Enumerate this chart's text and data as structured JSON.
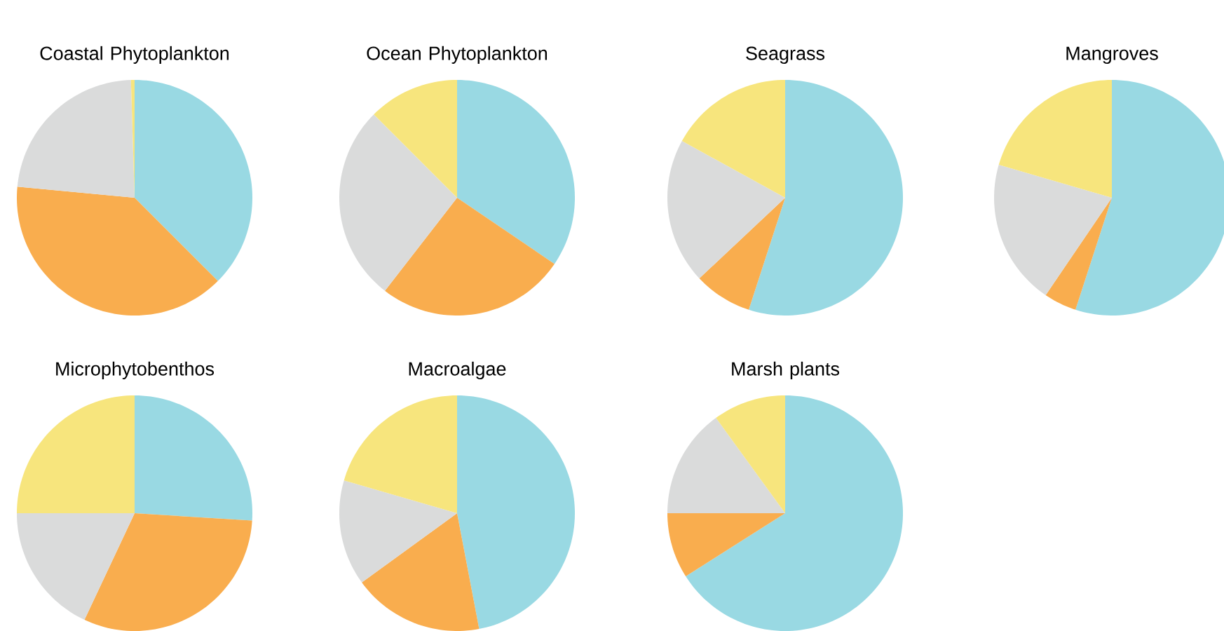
{
  "chart_data": [
    {
      "type": "pie",
      "title": "Coastal Phytoplankton",
      "categories": [
        null,
        null,
        null,
        null
      ],
      "values": [
        37.5,
        39,
        23,
        0.5
      ],
      "colors": [
        "#99d9e3",
        "#f9ad4e",
        "#dadbdb",
        "#f7e57d"
      ]
    },
    {
      "type": "pie",
      "title": "Ocean Phytoplankton",
      "categories": [
        null,
        null,
        null,
        null
      ],
      "values": [
        34.5,
        26,
        27,
        12.5
      ],
      "colors": [
        "#99d9e3",
        "#f9ad4e",
        "#dadbdb",
        "#f7e57d"
      ]
    },
    {
      "type": "pie",
      "title": "Seagrass",
      "categories": [
        null,
        null,
        null,
        null
      ],
      "values": [
        55,
        8,
        20,
        17
      ],
      "colors": [
        "#99d9e3",
        "#f9ad4e",
        "#dadbdb",
        "#f7e57d"
      ]
    },
    {
      "type": "pie",
      "title": "Mangroves",
      "categories": [
        null,
        null,
        null,
        null
      ],
      "values": [
        55,
        4.5,
        20,
        20.5
      ],
      "colors": [
        "#99d9e3",
        "#f9ad4e",
        "#dadbdb",
        "#f7e57d"
      ]
    },
    {
      "type": "pie",
      "title": "Microphytobenthos",
      "categories": [
        null,
        null,
        null,
        null
      ],
      "values": [
        26,
        31,
        18,
        25
      ],
      "colors": [
        "#99d9e3",
        "#f9ad4e",
        "#dadbdb",
        "#f7e57d"
      ]
    },
    {
      "type": "pie",
      "title": "Macroalgae",
      "categories": [
        null,
        null,
        null,
        null
      ],
      "values": [
        47,
        18,
        14.5,
        20.5
      ],
      "colors": [
        "#99d9e3",
        "#f9ad4e",
        "#dadbdb",
        "#f7e57d"
      ]
    },
    {
      "type": "pie",
      "title": "Marsh plants",
      "categories": [
        null,
        null,
        null,
        null
      ],
      "values": [
        66,
        9,
        15,
        10
      ],
      "colors": [
        "#99d9e3",
        "#f9ad4e",
        "#dadbdb",
        "#f7e57d"
      ]
    }
  ]
}
